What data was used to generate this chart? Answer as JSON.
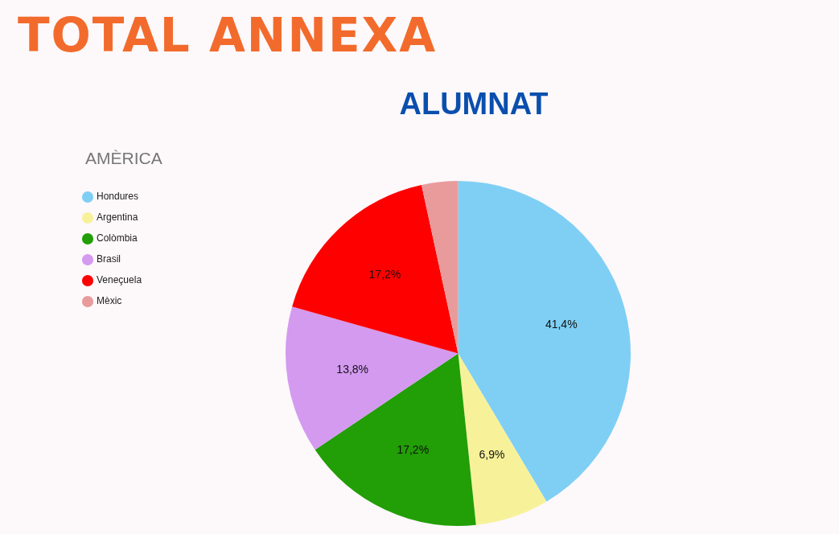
{
  "chart_data": {
    "type": "pie",
    "title": "TOTAL ANNEXA",
    "subtitle": "ALUMNAT",
    "legend_title": "AMÈRICA",
    "legend": "top left",
    "categories": [
      "Hondures",
      "Argentina",
      "Colòmbia",
      "Brasil",
      "Veneçuela",
      "Mèxic"
    ],
    "values": [
      41.4,
      6.9,
      17.2,
      13.8,
      17.2,
      3.4
    ],
    "colors": [
      "#7fcff5",
      "#f7f29a",
      "#229e06",
      "#d39af0",
      "#ff0000",
      "#e99b9b"
    ],
    "value_labels": [
      "41,4%",
      "6,9%",
      "17,2%",
      "13,8%",
      "17,2%",
      null
    ]
  }
}
